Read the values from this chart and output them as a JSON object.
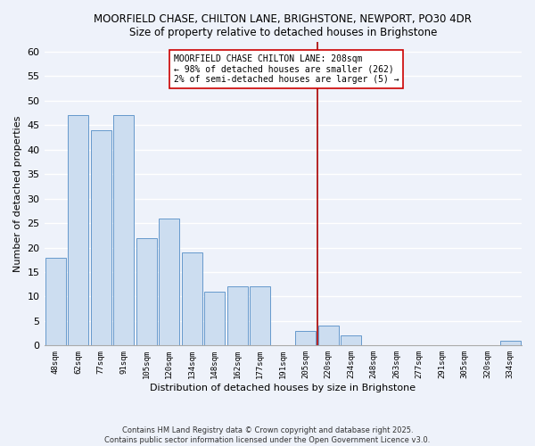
{
  "title1": "MOORFIELD CHASE, CHILTON LANE, BRIGHSTONE, NEWPORT, PO30 4DR",
  "title2": "Size of property relative to detached houses in Brighstone",
  "xlabel": "Distribution of detached houses by size in Brighstone",
  "ylabel": "Number of detached properties",
  "bar_labels": [
    "48sqm",
    "62sqm",
    "77sqm",
    "91sqm",
    "105sqm",
    "120sqm",
    "134sqm",
    "148sqm",
    "162sqm",
    "177sqm",
    "191sqm",
    "205sqm",
    "220sqm",
    "234sqm",
    "248sqm",
    "263sqm",
    "277sqm",
    "291sqm",
    "305sqm",
    "320sqm",
    "334sqm"
  ],
  "bar_values": [
    18,
    47,
    44,
    47,
    22,
    26,
    19,
    11,
    12,
    12,
    0,
    3,
    4,
    2,
    0,
    0,
    0,
    0,
    0,
    0,
    1
  ],
  "bar_color": "#ccddf0",
  "bar_edge_color": "#6699cc",
  "vline_x_index": 11.5,
  "vline_color": "#aa0000",
  "annotation_text": "MOORFIELD CHASE CHILTON LANE: 208sqm\n← 98% of detached houses are smaller (262)\n2% of semi-detached houses are larger (5) →",
  "annotation_box_color": "white",
  "annotation_box_edge_color": "#cc0000",
  "ylim": [
    0,
    62
  ],
  "yticks": [
    0,
    5,
    10,
    15,
    20,
    25,
    30,
    35,
    40,
    45,
    50,
    55,
    60
  ],
  "bg_color": "#eef2fa",
  "grid_color": "#ffffff",
  "footer_line1": "Contains HM Land Registry data © Crown copyright and database right 2025.",
  "footer_line2": "Contains public sector information licensed under the Open Government Licence v3.0."
}
